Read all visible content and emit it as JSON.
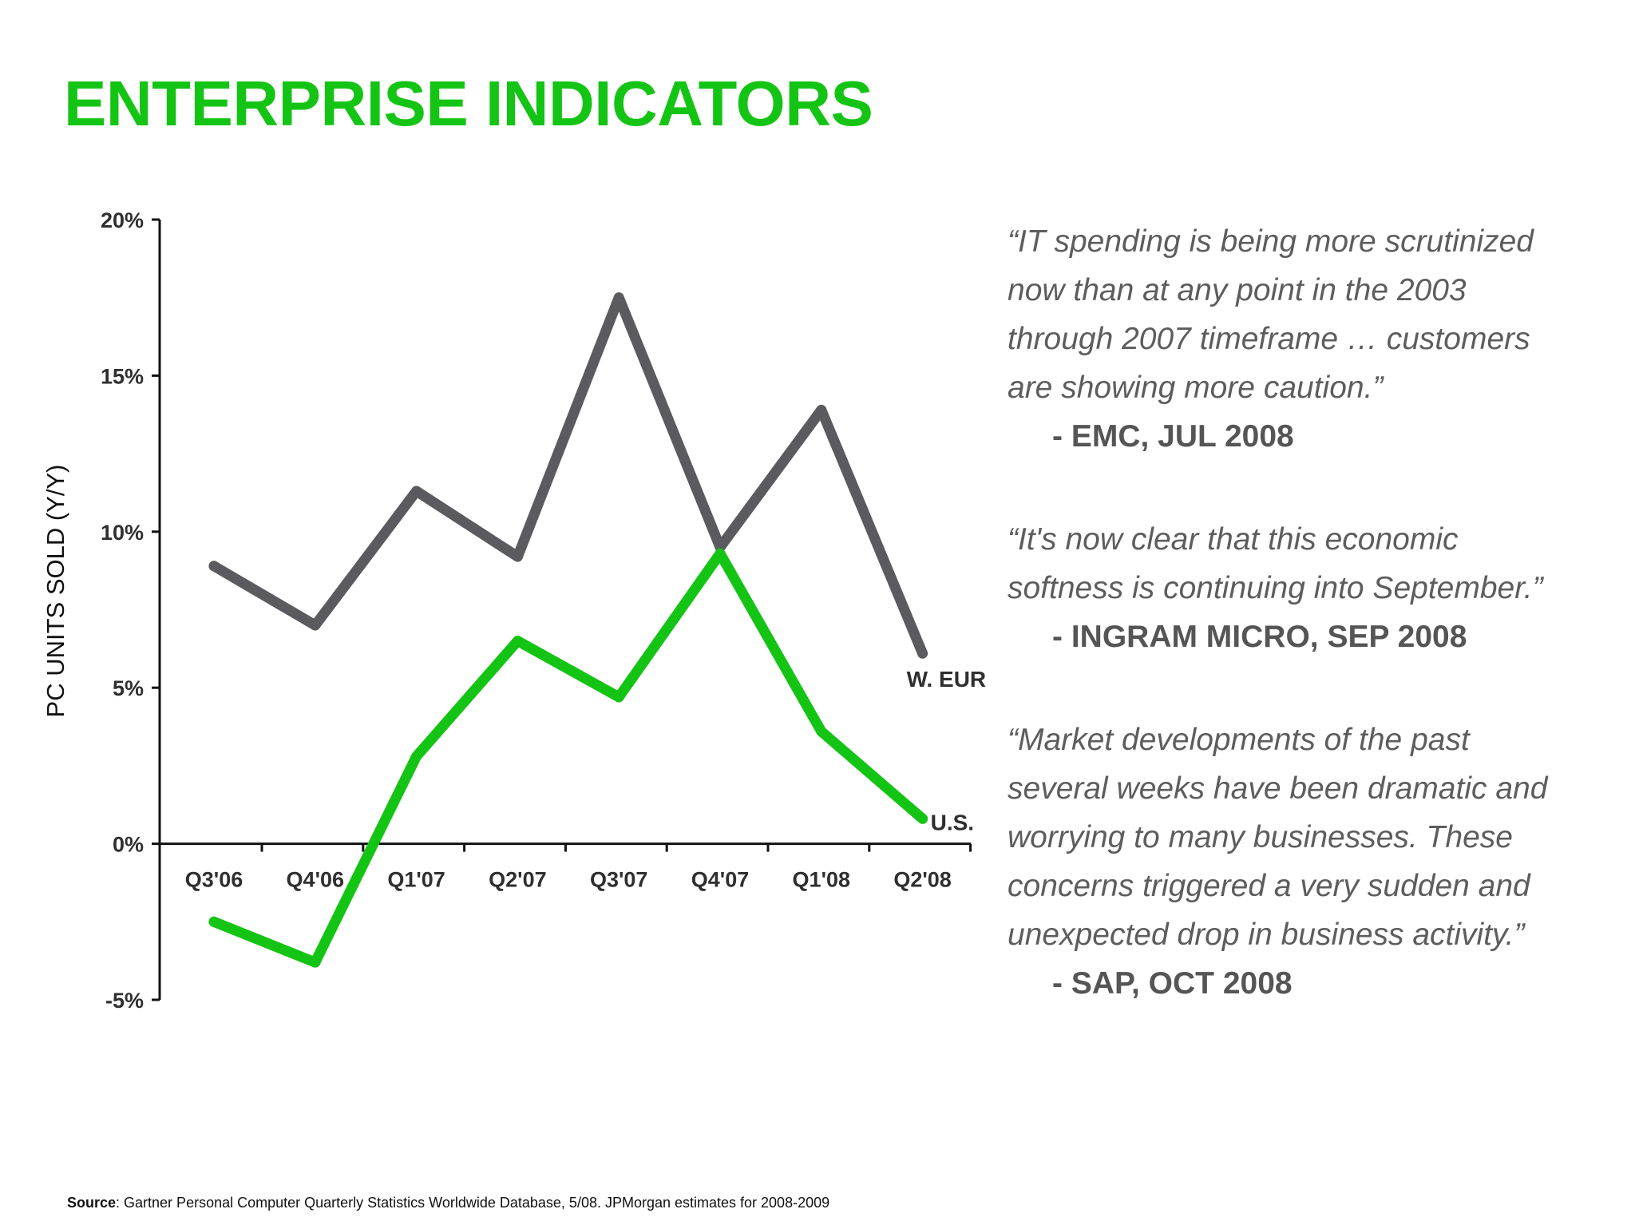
{
  "title": "ENTERPRISE INDICATORS",
  "chart_data": {
    "type": "line",
    "ylabel": "PC UNITS SOLD (Y/Y)",
    "categories": [
      "Q3'06",
      "Q4'06",
      "Q1'07",
      "Q2'07",
      "Q3'07",
      "Q4'07",
      "Q1'08",
      "Q2'08"
    ],
    "y_ticks": [
      "20%",
      "15%",
      "10%",
      "5%",
      "0%",
      "-5%"
    ],
    "ylim": [
      -5,
      20
    ],
    "grid": false,
    "series": [
      {
        "name": "W. EUR",
        "color": "#5b5a5f",
        "values": [
          8.9,
          7.0,
          11.3,
          9.2,
          17.5,
          9.5,
          13.9,
          6.1
        ]
      },
      {
        "name": "U.S.",
        "color": "#14c414",
        "values": [
          -2.5,
          -3.8,
          2.8,
          6.5,
          4.7,
          9.3,
          3.6,
          0.8
        ]
      }
    ]
  },
  "quotes": [
    {
      "lines": [
        "“IT spending is being more scrutinized",
        "now than at any point in the 2003",
        "through 2007 timeframe … customers",
        "are showing more caution.”"
      ],
      "attribution": "- EMC, JUL 2008"
    },
    {
      "lines": [
        "“It's now clear that this economic",
        "softness is continuing into September.”"
      ],
      "attribution": "- INGRAM MICRO, SEP 2008"
    },
    {
      "lines": [
        "“Market developments of the past",
        "several weeks have been dramatic and",
        "worrying to many businesses. These",
        "concerns triggered a very sudden and",
        "unexpected drop in business activity.”"
      ],
      "attribution": "- SAP, OCT 2008"
    }
  ],
  "source": {
    "label": "Source",
    "text": ": Gartner Personal Computer Quarterly Statistics Worldwide Database, 5/08. JPMorgan estimates for 2008-2009"
  }
}
